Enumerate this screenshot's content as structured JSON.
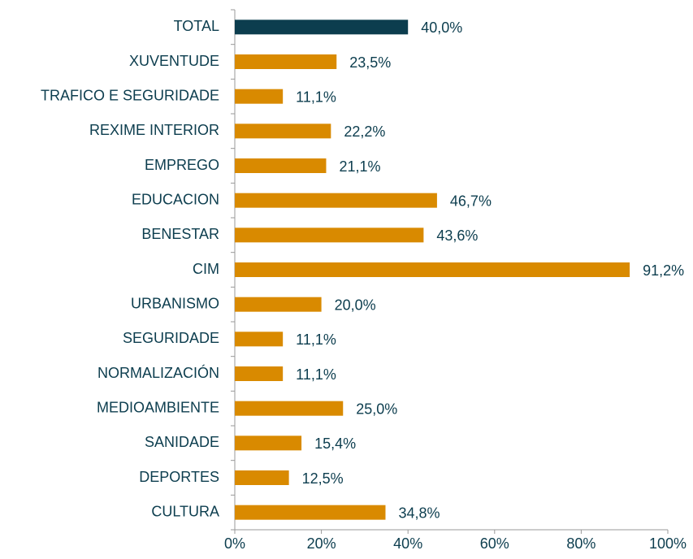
{
  "chart_data": {
    "type": "barh",
    "categories": [
      "TOTAL",
      "XUVENTUDE",
      "TRAFICO E SEGURIDADE",
      "REXIME INTERIOR",
      "EMPREGO",
      "EDUCACION",
      "BENESTAR",
      "CIM",
      "URBANISMO",
      "SEGURIDADE",
      "NORMALIZACIÓN",
      "MEDIOAMBIENTE",
      "SANIDADE",
      "DEPORTES",
      "CULTURA"
    ],
    "values": [
      40.0,
      23.5,
      11.1,
      22.2,
      21.1,
      46.7,
      43.6,
      91.2,
      20.0,
      11.1,
      11.1,
      25.0,
      15.4,
      12.5,
      34.8
    ],
    "value_labels": [
      "40,0%",
      "23,5%",
      "11,1%",
      "22,2%",
      "21,1%",
      "46,7%",
      "43,6%",
      "91,2%",
      "20,0%",
      "11,1%",
      "11,1%",
      "25,0%",
      "15,4%",
      "12,5%",
      "34,8%"
    ],
    "colors": [
      "#0c3d4e",
      "#d98a00",
      "#d98a00",
      "#d98a00",
      "#d98a00",
      "#d98a00",
      "#d98a00",
      "#d98a00",
      "#d98a00",
      "#d98a00",
      "#d98a00",
      "#d98a00",
      "#d98a00",
      "#d98a00",
      "#d98a00"
    ],
    "xlim": [
      0,
      100
    ],
    "xticks": [
      {
        "value": 0,
        "label": "0%"
      },
      {
        "value": 20,
        "label": "20%"
      },
      {
        "value": 40,
        "label": "40%"
      },
      {
        "value": 60,
        "label": "60%"
      },
      {
        "value": 80,
        "label": "80%"
      },
      {
        "value": 100,
        "label": "100%"
      }
    ],
    "grid": false
  }
}
